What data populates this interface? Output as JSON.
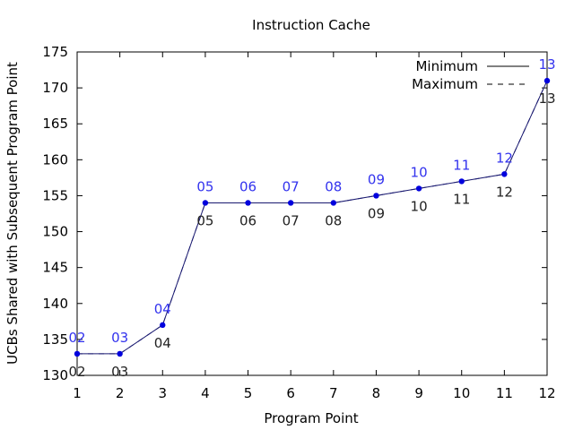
{
  "chart_data": {
    "type": "line",
    "title": "Instruction Cache",
    "xlabel": "Program Point",
    "ylabel": "UCBs Shared with Subsequent Program Point",
    "xlim": [
      1,
      12
    ],
    "ylim": [
      130,
      175
    ],
    "x_ticks": [
      1,
      2,
      3,
      4,
      5,
      6,
      7,
      8,
      9,
      10,
      11,
      12
    ],
    "y_ticks": [
      130,
      135,
      140,
      145,
      150,
      155,
      160,
      165,
      170,
      175
    ],
    "grid": false,
    "legend_position": "top-right",
    "series": [
      {
        "name": "Minimum",
        "style": "solid",
        "color": "#191970",
        "x": [
          1,
          2,
          3,
          4,
          5,
          6,
          7,
          8,
          9,
          10,
          11,
          12
        ],
        "values": [
          133,
          133,
          137,
          154,
          154,
          154,
          154,
          155,
          156,
          157,
          158,
          171
        ]
      },
      {
        "name": "Maximum",
        "style": "dashed",
        "color": "#191970",
        "x": [
          1,
          2,
          3,
          4,
          5,
          6,
          7,
          8,
          9,
          10,
          11,
          12
        ],
        "values": [
          133,
          133,
          137,
          154,
          154,
          154,
          154,
          155,
          156,
          157,
          158,
          171
        ]
      }
    ],
    "point_color": "#0000dd",
    "above_labels": [
      "02",
      "03",
      "04",
      "05",
      "06",
      "07",
      "08",
      "09",
      "10",
      "11",
      "12",
      "13"
    ],
    "above_label_color": "#3333ee",
    "below_labels": [
      "02",
      "03",
      "04",
      "05",
      "06",
      "07",
      "08",
      "09",
      "10",
      "11",
      "12",
      "13"
    ],
    "below_label_color": "#222222"
  }
}
